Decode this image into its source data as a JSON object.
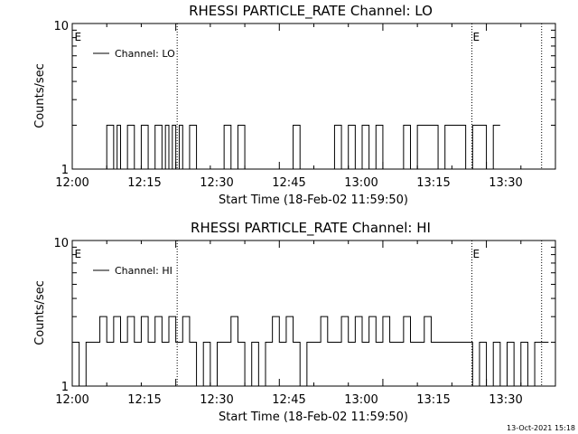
{
  "footer": {
    "timestamp": "13-Oct-2021 15:18"
  },
  "chart_data": [
    {
      "type": "line",
      "title": "RHESSI PARTICLE_RATE Channel: LO",
      "xlabel": "Start Time (18-Feb-02 11:59:50)",
      "ylabel": "Counts/sec",
      "x_unit": "minutes after 12:00",
      "xlim": [
        0,
        70
      ],
      "ylim": [
        1,
        10
      ],
      "y_scale": "log",
      "x_ticks": [
        "12:00",
        "12:15",
        "12:30",
        "12:45",
        "13:00",
        "13:15",
        "13:30"
      ],
      "y_ticks": [
        "1",
        "10"
      ],
      "legend": {
        "position": "top-left",
        "label": "Channel: LO"
      },
      "markers": [
        {
          "label": "E",
          "minute": 0.2
        },
        {
          "label": "",
          "minute": 15.2
        },
        {
          "label": "E",
          "minute": 57.9
        },
        {
          "label": "",
          "minute": 68.0
        }
      ],
      "series": [
        {
          "name": "Channel: LO",
          "x": [
            4.0,
            5.0,
            6.0,
            6.5,
            7.0,
            8.0,
            9.0,
            10.0,
            11.0,
            12.0,
            13.0,
            13.5,
            14.0,
            14.5,
            15.0,
            15.5,
            16.0,
            17.0,
            18.0,
            22.0,
            23.0,
            24.0,
            25.0,
            32.0,
            33.0,
            38.0,
            39.0,
            40.0,
            41.0,
            42.0,
            43.0,
            44.0,
            45.0,
            48.0,
            49.0,
            50.0,
            53.0,
            54.0,
            57.0,
            58.0,
            60.0,
            61.0
          ],
          "values": [
            1,
            2,
            1,
            2,
            1,
            2,
            1,
            2,
            1,
            2,
            1,
            2,
            1,
            2,
            1,
            2,
            1,
            2,
            1,
            2,
            1,
            2,
            1,
            2,
            1,
            2,
            1,
            2,
            1,
            2,
            1,
            2,
            1,
            2,
            1,
            2,
            1,
            2,
            1,
            2,
            1,
            2
          ]
        }
      ]
    },
    {
      "type": "line",
      "title": "RHESSI PARTICLE_RATE Channel: HI",
      "xlabel": "Start Time (18-Feb-02 11:59:50)",
      "ylabel": "Counts/sec",
      "x_unit": "minutes after 12:00",
      "xlim": [
        0,
        70
      ],
      "ylim": [
        1,
        10
      ],
      "y_scale": "log",
      "x_ticks": [
        "12:00",
        "12:15",
        "12:30",
        "12:45",
        "13:00",
        "13:15",
        "13:30"
      ],
      "y_ticks": [
        "1",
        "10"
      ],
      "legend": {
        "position": "top-left",
        "label": "Channel: HI"
      },
      "markers": [
        {
          "label": "E",
          "minute": 0.2
        },
        {
          "label": "",
          "minute": 15.2
        },
        {
          "label": "E",
          "minute": 57.9
        },
        {
          "label": "",
          "minute": 68.0
        }
      ],
      "series": [
        {
          "name": "Channel: HI",
          "x": [
            0.0,
            1.0,
            2.0,
            3.0,
            4.0,
            5.0,
            6.0,
            7.0,
            8.0,
            9.0,
            10.0,
            11.0,
            12.0,
            13.0,
            14.0,
            15.0,
            16.0,
            17.0,
            18.0,
            19.0,
            20.0,
            21.0,
            22.0,
            23.0,
            24.0,
            25.0,
            26.0,
            27.0,
            28.0,
            29.0,
            30.0,
            31.0,
            32.0,
            33.0,
            34.0,
            35.0,
            36.0,
            37.0,
            38.0,
            39.0,
            40.0,
            41.0,
            42.0,
            43.0,
            44.0,
            45.0,
            46.0,
            47.0,
            48.0,
            49.0,
            50.0,
            51.0,
            52.0,
            53.0,
            54.0,
            55.0,
            56.0,
            57.0,
            58.0,
            59.0,
            60.0,
            61.0,
            62.0,
            63.0,
            64.0,
            65.0,
            66.0,
            67.0,
            68.0
          ],
          "values": [
            2,
            1,
            2,
            2,
            3,
            2,
            3,
            2,
            3,
            2,
            3,
            2,
            3,
            2,
            3,
            2,
            3,
            2,
            1,
            2,
            1,
            2,
            2,
            3,
            2,
            1,
            2,
            1,
            2,
            3,
            2,
            3,
            2,
            1,
            2,
            2,
            3,
            2,
            2,
            3,
            2,
            3,
            2,
            3,
            2,
            3,
            2,
            2,
            3,
            2,
            2,
            3,
            2,
            2,
            2,
            2,
            2,
            2,
            1,
            2,
            1,
            2,
            1,
            2,
            1,
            2,
            1,
            2,
            2
          ]
        }
      ]
    }
  ]
}
